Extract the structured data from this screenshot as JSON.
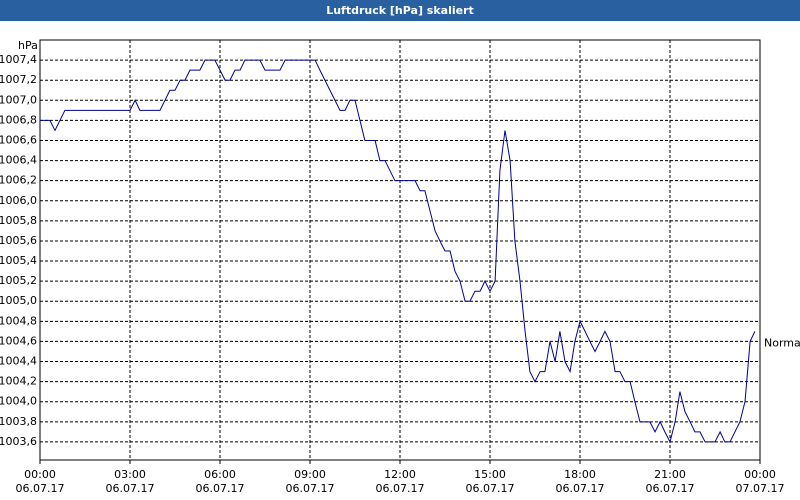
{
  "chart_data": {
    "type": "line",
    "title": "Luftdruck [hPa] skaliert",
    "y_label": "hPa",
    "x": [
      0,
      0.33,
      0.5,
      0.83,
      3,
      3.17,
      3.33,
      4,
      4.33,
      4.5,
      4.67,
      4.83,
      5,
      5.33,
      5.5,
      5.83,
      6,
      6.17,
      6.33,
      6.5,
      6.67,
      6.83,
      7.33,
      7.5,
      7.83,
      8,
      8.17,
      9.17,
      9.33,
      10,
      10.17,
      10.33,
      10.5,
      10.83,
      11.17,
      11.33,
      11.5,
      11.83,
      12.5,
      12.67,
      12.83,
      13,
      13.17,
      13.33,
      13.5,
      13.67,
      13.83,
      14,
      14.17,
      14.33,
      14.5,
      14.67,
      14.83,
      15,
      15.17,
      15.33,
      15.5,
      15.67,
      15.83,
      16,
      16.17,
      16.33,
      16.5,
      16.67,
      16.83,
      17,
      17.17,
      17.33,
      17.5,
      17.67,
      17.83,
      18,
      18.17,
      18.33,
      18.5,
      18.67,
      18.83,
      19,
      19.17,
      19.33,
      19.5,
      19.67,
      19.83,
      20,
      20.33,
      20.5,
      20.67,
      20.83,
      21,
      21.17,
      21.33,
      21.5,
      21.67,
      21.83,
      22,
      22.17,
      22.5,
      22.67,
      22.83,
      23,
      23.33,
      23.5,
      23.67,
      23.83
    ],
    "series": [
      {
        "name": "Normal",
        "color": "#000090",
        "values": [
          1006.8,
          1006.8,
          1006.7,
          1006.9,
          1006.9,
          1007.0,
          1006.9,
          1006.9,
          1007.1,
          1007.1,
          1007.2,
          1007.2,
          1007.3,
          1007.3,
          1007.4,
          1007.4,
          1007.3,
          1007.2,
          1007.2,
          1007.3,
          1007.3,
          1007.4,
          1007.4,
          1007.3,
          1007.3,
          1007.3,
          1007.4,
          1007.4,
          1007.3,
          1006.9,
          1006.9,
          1007.0,
          1007.0,
          1006.6,
          1006.6,
          1006.4,
          1006.4,
          1006.2,
          1006.2,
          1006.1,
          1006.1,
          1005.9,
          1005.7,
          1005.6,
          1005.5,
          1005.5,
          1005.3,
          1005.2,
          1005.0,
          1005.0,
          1005.1,
          1005.1,
          1005.2,
          1005.1,
          1005.2,
          1006.3,
          1006.7,
          1006.4,
          1005.6,
          1005.2,
          1004.7,
          1004.3,
          1004.2,
          1004.3,
          1004.3,
          1004.6,
          1004.4,
          1004.7,
          1004.4,
          1004.3,
          1004.6,
          1004.8,
          1004.7,
          1004.6,
          1004.5,
          1004.6,
          1004.7,
          1004.6,
          1004.3,
          1004.3,
          1004.2,
          1004.2,
          1004.0,
          1003.8,
          1003.8,
          1003.7,
          1003.8,
          1003.7,
          1003.6,
          1003.8,
          1004.1,
          1003.9,
          1003.8,
          1003.7,
          1003.7,
          1003.6,
          1003.6,
          1003.7,
          1003.6,
          1003.6,
          1003.8,
          1004.0,
          1004.6,
          1004.7
        ]
      }
    ],
    "xlim": [
      0,
      24
    ],
    "xticks": [
      {
        "value": 0,
        "label": "00:00\n06.07.17"
      },
      {
        "value": 3,
        "label": "03:00\n06.07.17"
      },
      {
        "value": 6,
        "label": "06:00\n06.07.17"
      },
      {
        "value": 9,
        "label": "09:00\n06.07.17"
      },
      {
        "value": 12,
        "label": "12:00\n06.07.17"
      },
      {
        "value": 15,
        "label": "15:00\n06.07.17"
      },
      {
        "value": 18,
        "label": "18:00\n06.07.17"
      },
      {
        "value": 21,
        "label": "21:00\n06.07.17"
      },
      {
        "value": 24,
        "label": "00:00\n07.07.17"
      }
    ],
    "ylim": [
      1003.42,
      1007.6
    ],
    "yticks": [
      {
        "value": 1003.6,
        "label": "1003,6"
      },
      {
        "value": 1003.8,
        "label": "1003,8"
      },
      {
        "value": 1004.0,
        "label": "1004,0"
      },
      {
        "value": 1004.2,
        "label": "1004,2"
      },
      {
        "value": 1004.4,
        "label": "1004,4"
      },
      {
        "value": 1004.6,
        "label": "1004,6"
      },
      {
        "value": 1004.8,
        "label": "1004,8"
      },
      {
        "value": 1005.0,
        "label": "1005,0"
      },
      {
        "value": 1005.2,
        "label": "1005,2"
      },
      {
        "value": 1005.4,
        "label": "1005,4"
      },
      {
        "value": 1005.6,
        "label": "1005,6"
      },
      {
        "value": 1005.8,
        "label": "1005,8"
      },
      {
        "value": 1006.0,
        "label": "1006,0"
      },
      {
        "value": 1006.2,
        "label": "1006,2"
      },
      {
        "value": 1006.4,
        "label": "1006,4"
      },
      {
        "value": 1006.6,
        "label": "1006,6"
      },
      {
        "value": 1006.8,
        "label": "1006,8"
      },
      {
        "value": 1007.0,
        "label": "1007,0"
      },
      {
        "value": 1007.2,
        "label": "1007,2"
      },
      {
        "value": 1007.4,
        "label": "1007,4"
      }
    ],
    "grid": true
  }
}
